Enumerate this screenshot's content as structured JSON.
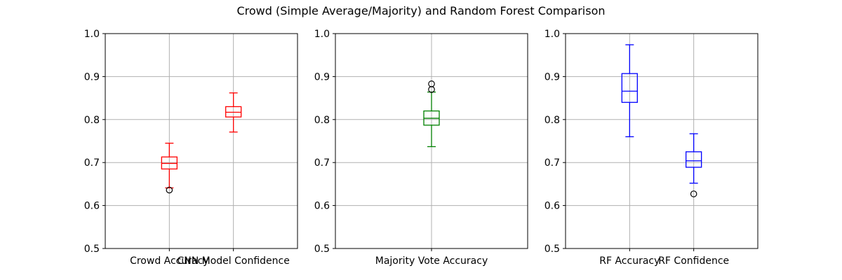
{
  "title": "Crowd (Simple Average/Majority) and Random Forest Comparison",
  "chart_data": [
    {
      "type": "box",
      "ylim": [
        0.5,
        1.0
      ],
      "yticks": [
        "0.5",
        "0.6",
        "0.7",
        "0.8",
        "0.9",
        "1.0"
      ],
      "grid": true,
      "categories": [
        "Crowd Accuracy",
        "CNN Model Confidence"
      ],
      "color": "#ff0000",
      "boxes": [
        {
          "whisker_low": 0.641,
          "q1": 0.685,
          "median": 0.698,
          "q3": 0.713,
          "whisker_high": 0.745,
          "outliers": [
            0.636
          ]
        },
        {
          "whisker_low": 0.771,
          "q1": 0.806,
          "median": 0.817,
          "q3": 0.83,
          "whisker_high": 0.862,
          "outliers": []
        }
      ]
    },
    {
      "type": "box",
      "ylim": [
        0.5,
        1.0
      ],
      "yticks": [
        "0.5",
        "0.6",
        "0.7",
        "0.8",
        "0.9",
        "1.0"
      ],
      "grid": true,
      "categories": [
        "Majority Vote Accuracy"
      ],
      "color": "#008000",
      "boxes": [
        {
          "whisker_low": 0.737,
          "q1": 0.787,
          "median": 0.803,
          "q3": 0.82,
          "whisker_high": 0.864,
          "outliers": [
            0.87,
            0.883
          ]
        }
      ]
    },
    {
      "type": "box",
      "ylim": [
        0.5,
        1.0
      ],
      "yticks": [
        "0.5",
        "0.6",
        "0.7",
        "0.8",
        "0.9",
        "1.0"
      ],
      "grid": true,
      "categories": [
        "RF Accuracy",
        "RF Confidence"
      ],
      "color": "#0000ff",
      "boxes": [
        {
          "whisker_low": 0.76,
          "q1": 0.84,
          "median": 0.866,
          "q3": 0.907,
          "whisker_high": 0.974,
          "outliers": []
        },
        {
          "whisker_low": 0.652,
          "q1": 0.689,
          "median": 0.704,
          "q3": 0.725,
          "whisker_high": 0.767,
          "outliers": [
            0.627
          ]
        }
      ]
    }
  ]
}
